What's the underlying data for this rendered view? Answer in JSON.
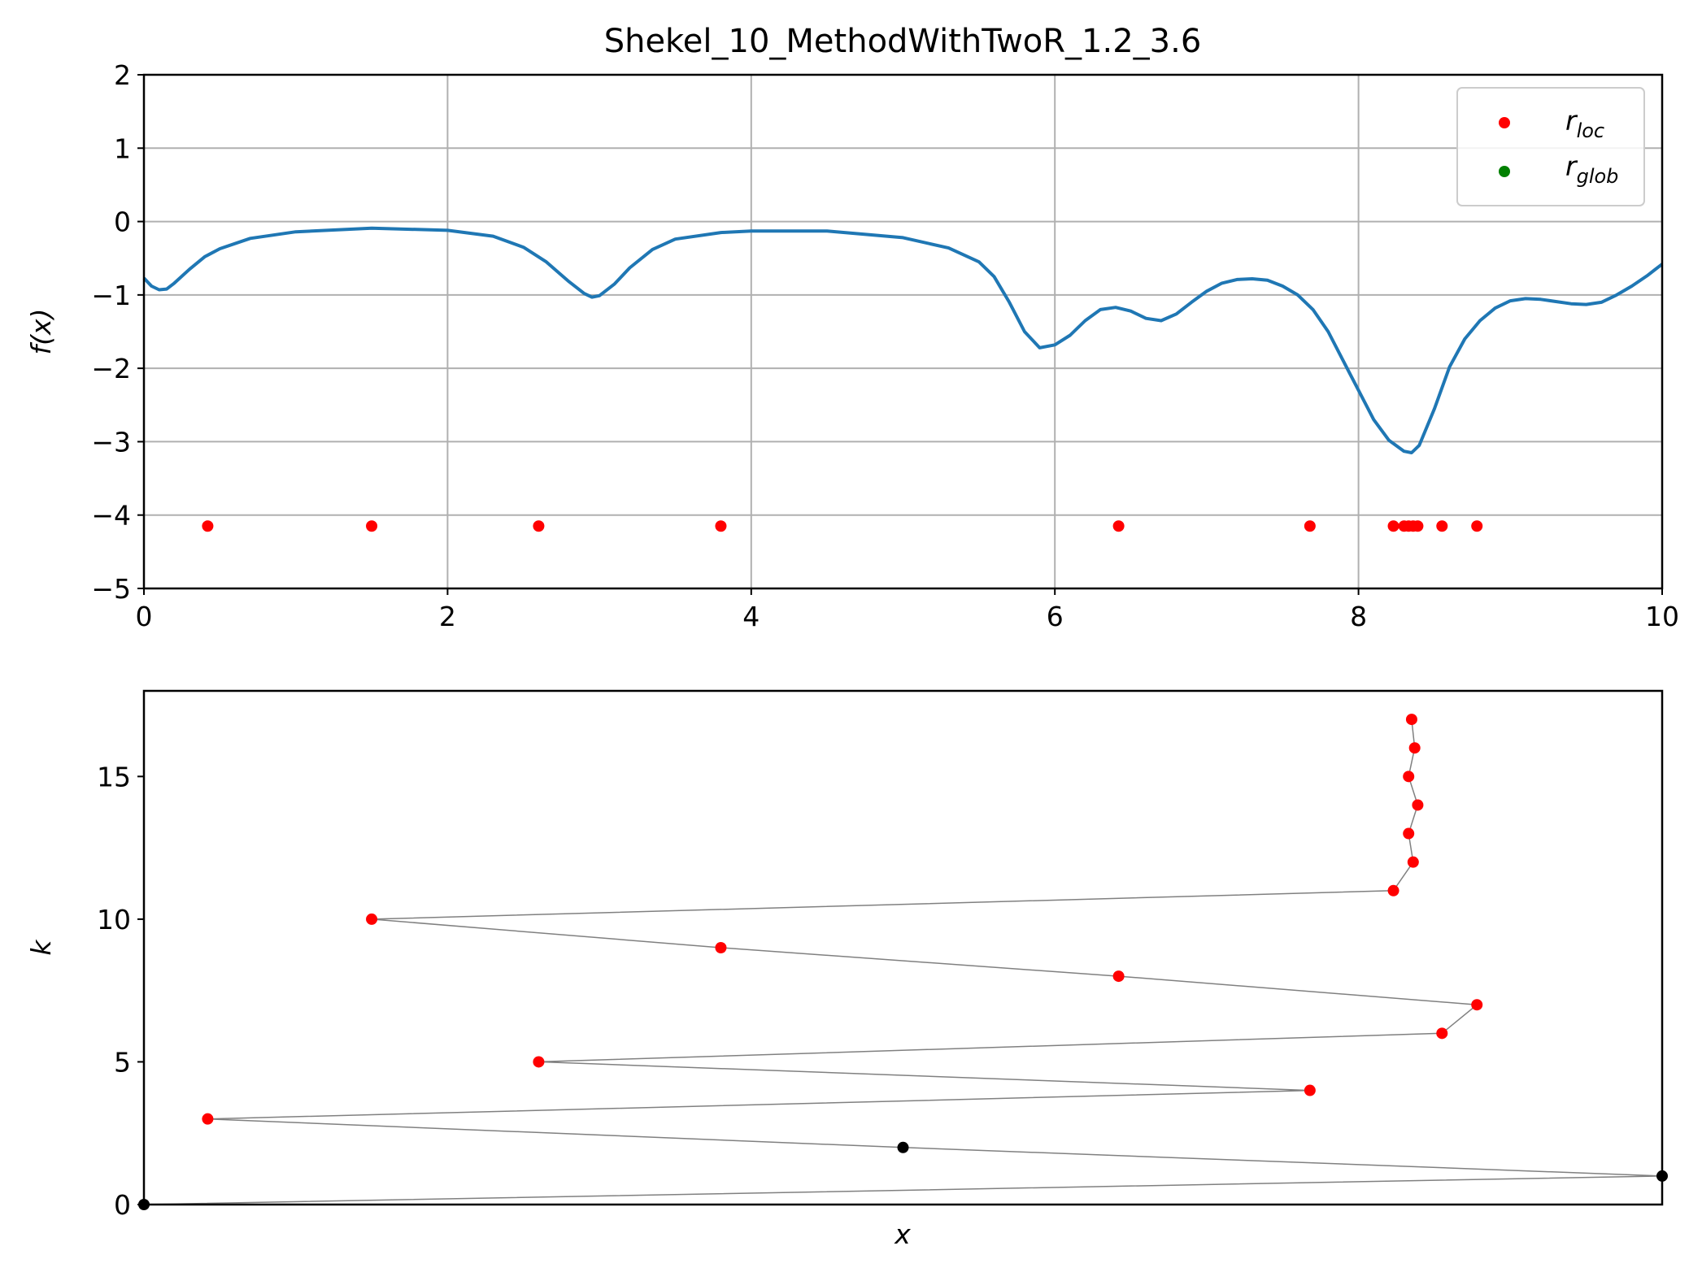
{
  "chart_data": [
    {
      "type": "line",
      "title": "Shekel_10_MethodWithTwoR_1.2_3.6",
      "xlabel": "",
      "ylabel": "f(x)",
      "xlim": [
        0,
        10
      ],
      "ylim": [
        -5,
        2
      ],
      "x_ticks": [
        0,
        2,
        4,
        6,
        8,
        10
      ],
      "y_ticks": [
        2,
        1,
        0,
        -1,
        -2,
        -3,
        -4,
        -5
      ],
      "x_tick_labels": [
        "0",
        "2",
        "4",
        "6",
        "8",
        "10"
      ],
      "y_tick_labels": [
        "2",
        "1",
        "0",
        "−1",
        "−2",
        "−3",
        "−4",
        "−5"
      ],
      "grid": true,
      "legend_position": "top-right",
      "legend": [
        {
          "base": "r",
          "sub": "loc",
          "color": "#ff0000"
        },
        {
          "base": "r",
          "sub": "glob",
          "color": "#008000"
        }
      ],
      "curve": {
        "color": "#1f77b4",
        "x": [
          0,
          0.05,
          0.1,
          0.15,
          0.2,
          0.3,
          0.4,
          0.5,
          0.7,
          1.0,
          1.5,
          2.0,
          2.3,
          2.5,
          2.65,
          2.8,
          2.9,
          2.95,
          3.0,
          3.1,
          3.2,
          3.35,
          3.5,
          3.8,
          4.0,
          4.5,
          5.0,
          5.3,
          5.5,
          5.6,
          5.7,
          5.8,
          5.9,
          6.0,
          6.1,
          6.2,
          6.3,
          6.4,
          6.5,
          6.6,
          6.7,
          6.8,
          6.9,
          7.0,
          7.1,
          7.2,
          7.3,
          7.4,
          7.5,
          7.6,
          7.7,
          7.8,
          7.9,
          8.0,
          8.1,
          8.2,
          8.3,
          8.35,
          8.4,
          8.5,
          8.6,
          8.7,
          8.8,
          8.9,
          9.0,
          9.1,
          9.2,
          9.3,
          9.4,
          9.5,
          9.6,
          9.7,
          9.8,
          9.9,
          10.0
        ],
        "y": [
          -0.77,
          -0.88,
          -0.93,
          -0.92,
          -0.84,
          -0.65,
          -0.48,
          -0.37,
          -0.23,
          -0.14,
          -0.09,
          -0.12,
          -0.2,
          -0.35,
          -0.55,
          -0.82,
          -0.98,
          -1.03,
          -1.01,
          -0.85,
          -0.63,
          -0.38,
          -0.24,
          -0.15,
          -0.13,
          -0.13,
          -0.22,
          -0.36,
          -0.55,
          -0.75,
          -1.1,
          -1.5,
          -1.72,
          -1.68,
          -1.55,
          -1.35,
          -1.2,
          -1.17,
          -1.22,
          -1.32,
          -1.35,
          -1.26,
          -1.1,
          -0.95,
          -0.84,
          -0.79,
          -0.78,
          -0.8,
          -0.88,
          -1.0,
          -1.2,
          -1.5,
          -1.9,
          -2.3,
          -2.7,
          -2.98,
          -3.13,
          -3.15,
          -3.05,
          -2.55,
          -1.98,
          -1.6,
          -1.35,
          -1.18,
          -1.08,
          -1.05,
          -1.06,
          -1.09,
          -1.12,
          -1.13,
          -1.1,
          -1.0,
          -0.88,
          -0.74,
          -0.58
        ]
      },
      "points": {
        "series": "r_loc",
        "color": "#ff0000",
        "y": -4.15,
        "x": [
          0.42,
          1.5,
          2.6,
          3.8,
          6.42,
          7.68,
          8.23,
          8.3,
          8.33,
          8.36,
          8.39,
          8.55,
          8.78
        ]
      }
    },
    {
      "type": "scatter",
      "title": "",
      "xlabel": "x",
      "ylabel": "k",
      "xlim": [
        0,
        10
      ],
      "ylim": [
        0,
        18
      ],
      "y_ticks": [
        0,
        5,
        10,
        15
      ],
      "y_tick_labels": [
        "0",
        "5",
        "10",
        "15"
      ],
      "x_tick_labels": [],
      "grid": false,
      "line_color": "#808080",
      "points": [
        {
          "k": 0,
          "x": 0.0,
          "color": "#000000"
        },
        {
          "k": 1,
          "x": 10.0,
          "color": "#000000"
        },
        {
          "k": 2,
          "x": 5.0,
          "color": "#000000"
        },
        {
          "k": 3,
          "x": 0.42,
          "color": "#ff0000"
        },
        {
          "k": 4,
          "x": 7.68,
          "color": "#ff0000"
        },
        {
          "k": 5,
          "x": 2.6,
          "color": "#ff0000"
        },
        {
          "k": 6,
          "x": 8.55,
          "color": "#ff0000"
        },
        {
          "k": 7,
          "x": 8.78,
          "color": "#ff0000"
        },
        {
          "k": 8,
          "x": 6.42,
          "color": "#ff0000"
        },
        {
          "k": 9,
          "x": 3.8,
          "color": "#ff0000"
        },
        {
          "k": 10,
          "x": 1.5,
          "color": "#ff0000"
        },
        {
          "k": 11,
          "x": 8.23,
          "color": "#ff0000"
        },
        {
          "k": 12,
          "x": 8.36,
          "color": "#ff0000"
        },
        {
          "k": 13,
          "x": 8.33,
          "color": "#ff0000"
        },
        {
          "k": 14,
          "x": 8.39,
          "color": "#ff0000"
        },
        {
          "k": 15,
          "x": 8.33,
          "color": "#ff0000"
        },
        {
          "k": 16,
          "x": 8.37,
          "color": "#ff0000"
        },
        {
          "k": 17,
          "x": 8.35,
          "color": "#ff0000"
        }
      ]
    }
  ]
}
